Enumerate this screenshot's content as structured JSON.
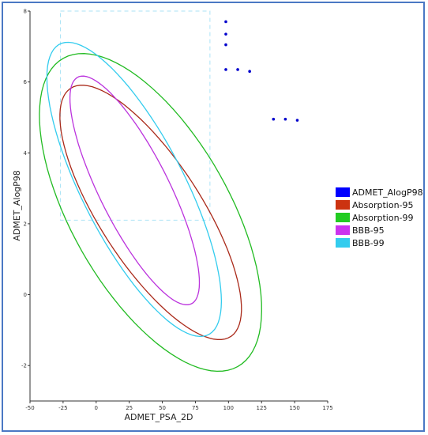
{
  "chart_data": {
    "type": "scatter",
    "xlabel": "ADMET_PSA_2D",
    "ylabel": "ADMET_AlogP98",
    "xlim": [
      -50,
      175
    ],
    "ylim": [
      -3,
      8
    ],
    "x_ticks": [
      -50,
      -25,
      0,
      25,
      50,
      75,
      100,
      125,
      150,
      175
    ],
    "y_ticks": [
      -2,
      0,
      2,
      4,
      6,
      8
    ],
    "grid": false,
    "legend_position": "right",
    "series": [
      {
        "name": "ADMET_AlogP98",
        "kind": "points",
        "color": "#0000cc",
        "points": [
          [
            98,
            7.7
          ],
          [
            98,
            7.35
          ],
          [
            98,
            7.05
          ],
          [
            98,
            6.35
          ],
          [
            107,
            6.35
          ],
          [
            116,
            6.3
          ],
          [
            134,
            4.95
          ],
          [
            143,
            4.95
          ],
          [
            152,
            4.92
          ]
        ]
      },
      {
        "name": "Absorption-95",
        "kind": "ellipse",
        "color": "#aa2a1a",
        "center": [
          41.2,
          2.32
        ],
        "major": [
          58.6,
          -3.54
        ],
        "minor": [
          35.7,
          0.59
        ]
      },
      {
        "name": "Absorption-99",
        "kind": "ellipse",
        "color": "#22bb22",
        "center": [
          41.1,
          2.32
        ],
        "major": [
          62.4,
          -4.41
        ],
        "minor": [
          56.2,
          0.8
        ]
      },
      {
        "name": "BBB-95",
        "kind": "ellipse",
        "color": "#bb33dd",
        "center": [
          29.1,
          2.94
        ],
        "major": [
          42.1,
          -3.21
        ],
        "minor": [
          24.9,
          0.33
        ]
      },
      {
        "name": "BBB-99",
        "kind": "ellipse",
        "color": "#33ccee",
        "center": [
          28.7,
          2.97
        ],
        "major": [
          54.8,
          -4.12
        ],
        "minor": [
          36.7,
          0.49
        ]
      }
    ],
    "overlay_box": {
      "x0": -27,
      "x1": 86,
      "y0": 2.1,
      "y1": 8.0,
      "color": "#66ccee"
    },
    "legend": [
      {
        "label": "ADMET_AlogP98",
        "color": "#0000ff"
      },
      {
        "label": "Absorption-95",
        "color": "#cc3311"
      },
      {
        "label": "Absorption-99",
        "color": "#22cc22"
      },
      {
        "label": "BBB-95",
        "color": "#cc33ee"
      },
      {
        "label": "BBB-99",
        "color": "#33ccee"
      }
    ]
  }
}
